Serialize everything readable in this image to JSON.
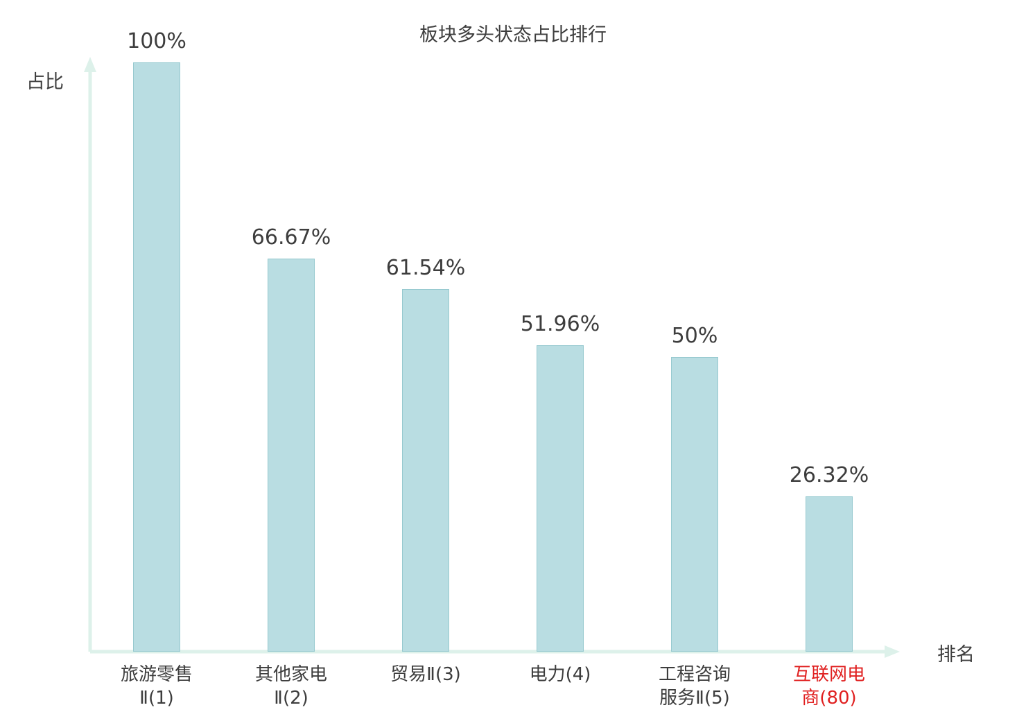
{
  "chart_data": {
    "type": "bar",
    "title": "板块多头状态占比排行",
    "ylabel": "占比",
    "xlabel": "排名",
    "categories": [
      "旅游零售Ⅱ(1)",
      "其他家电Ⅱ(2)",
      "贸易Ⅱ(3)",
      "电力(4)",
      "工程咨询服务Ⅱ(5)",
      "互联网电商(80)"
    ],
    "category_lines": [
      [
        "旅游零售",
        "Ⅱ(1)"
      ],
      [
        "其他家电",
        "Ⅱ(2)"
      ],
      [
        "贸易Ⅱ(3)"
      ],
      [
        "电力(4)"
      ],
      [
        "工程咨询",
        "服务Ⅱ(5)"
      ],
      [
        "互联网电",
        "商(80)"
      ]
    ],
    "values": [
      100,
      66.67,
      61.54,
      51.96,
      50,
      26.32
    ],
    "value_labels": [
      "100%",
      "66.67%",
      "61.54%",
      "51.96%",
      "50%",
      "26.32%"
    ],
    "ylim": [
      0,
      100
    ],
    "grid": false,
    "legend": null,
    "highlight_index": 5,
    "colors": {
      "bar_fill": "#b9dde2",
      "bar_border": "#96c9cf",
      "axis": "#ddf1ea",
      "text": "#3d3d3d",
      "highlight_text": "#e02020",
      "background": "#ffffff"
    }
  }
}
